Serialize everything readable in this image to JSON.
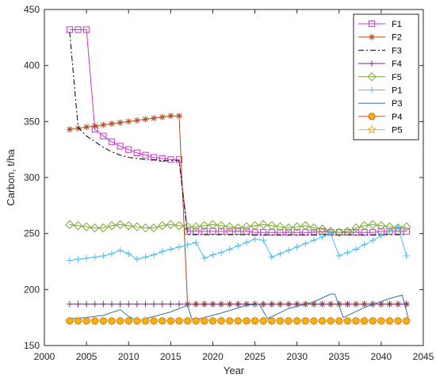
{
  "chart_data": {
    "type": "line",
    "xlabel": "Year",
    "ylabel": "Carbon, t/ha",
    "xlim": [
      2000,
      2045
    ],
    "ylim": [
      150,
      450
    ],
    "xticks": [
      2000,
      2005,
      2010,
      2015,
      2020,
      2025,
      2030,
      2035,
      2040,
      2045
    ],
    "yticks": [
      150,
      200,
      250,
      300,
      350,
      400,
      450
    ],
    "grid": false,
    "legend_position": "top-right",
    "series": [
      {
        "name": "F1",
        "color": "#CC33CC",
        "marker": "square",
        "dash": "solid",
        "x": [
          2003,
          2004,
          2005,
          2006,
          2007,
          2008,
          2009,
          2010,
          2011,
          2012,
          2013,
          2014,
          2015,
          2016,
          2017,
          2018,
          2019,
          2020,
          2021,
          2022,
          2023,
          2024,
          2025,
          2026,
          2027,
          2028,
          2029,
          2030,
          2031,
          2032,
          2033,
          2034,
          2035,
          2036,
          2037,
          2038,
          2039,
          2040,
          2041,
          2042,
          2043
        ],
        "y": [
          432,
          432,
          432,
          343,
          337,
          332,
          328,
          325,
          322,
          320,
          318,
          317,
          316,
          316,
          252,
          252,
          252,
          252,
          252,
          252,
          252,
          252,
          251,
          251,
          251,
          251,
          251,
          251,
          251,
          251,
          252,
          251,
          251,
          251,
          251,
          251,
          251,
          252,
          252,
          252,
          252
        ]
      },
      {
        "name": "F2",
        "color": "#B04A1E",
        "marker": "asterisk",
        "dash": "solid",
        "x": [
          2003,
          2004,
          2005,
          2006,
          2007,
          2008,
          2009,
          2010,
          2011,
          2012,
          2013,
          2014,
          2015,
          2016,
          2017,
          2018,
          2019,
          2020,
          2021,
          2022,
          2023,
          2024,
          2025,
          2026,
          2027,
          2028,
          2029,
          2030,
          2031,
          2032,
          2033,
          2034,
          2035,
          2036,
          2037,
          2038,
          2039,
          2040,
          2041,
          2042,
          2043
        ],
        "y": [
          343,
          344,
          345,
          346,
          347,
          348,
          349,
          350,
          351,
          352,
          353,
          354,
          355,
          355,
          187,
          187,
          187,
          187,
          187,
          187,
          187,
          187,
          187,
          187,
          187,
          187,
          187,
          187,
          187,
          187,
          187,
          187,
          187,
          187,
          187,
          187,
          187,
          187,
          187,
          187,
          187
        ]
      },
      {
        "name": "F3",
        "color": "#000000",
        "marker": "none",
        "dash": "dashdot",
        "x": [
          2003,
          2004,
          2005,
          2006,
          2007,
          2008,
          2009,
          2010,
          2011,
          2012,
          2013,
          2014,
          2015,
          2016,
          2017,
          2018,
          2019,
          2020,
          2021,
          2022,
          2023,
          2024,
          2025,
          2026,
          2027,
          2028,
          2029,
          2030,
          2031,
          2032,
          2033,
          2034,
          2035,
          2036,
          2037,
          2038,
          2039,
          2040,
          2041,
          2042,
          2043
        ],
        "y": [
          430,
          345,
          337,
          332,
          327,
          323,
          320,
          318,
          317,
          316,
          316,
          315,
          315,
          315,
          249,
          249,
          249,
          249,
          249,
          249,
          249,
          249,
          249,
          249,
          249,
          249,
          249,
          249,
          249,
          249,
          249,
          249,
          249,
          249,
          249,
          249,
          249,
          249,
          249,
          249,
          249
        ]
      },
      {
        "name": "F4",
        "color": "#7E2F8E",
        "marker": "plus",
        "dash": "solid",
        "x": [
          2003,
          2004,
          2005,
          2006,
          2007,
          2008,
          2009,
          2010,
          2011,
          2012,
          2013,
          2014,
          2015,
          2016,
          2017,
          2018,
          2019,
          2020,
          2021,
          2022,
          2023,
          2024,
          2025,
          2026,
          2027,
          2028,
          2029,
          2030,
          2031,
          2032,
          2033,
          2034,
          2035,
          2036,
          2037,
          2038,
          2039,
          2040,
          2041,
          2042,
          2043
        ],
        "y": [
          187,
          187,
          187,
          187,
          187,
          187,
          187,
          187,
          187,
          187,
          187,
          187,
          187,
          187,
          187,
          187,
          187,
          187,
          187,
          187,
          187,
          187,
          187,
          187,
          187,
          187,
          187,
          187,
          187,
          187,
          187,
          187,
          187,
          187,
          187,
          187,
          187,
          187,
          187,
          187,
          187
        ]
      },
      {
        "name": "F5",
        "color": "#77AC30",
        "marker": "diamond",
        "dash": "solid",
        "x": [
          2003,
          2004,
          2005,
          2006,
          2007,
          2008,
          2009,
          2010,
          2011,
          2012,
          2013,
          2014,
          2015,
          2016,
          2017,
          2018,
          2019,
          2020,
          2021,
          2022,
          2023,
          2024,
          2025,
          2026,
          2027,
          2028,
          2029,
          2030,
          2031,
          2032,
          2033,
          2034,
          2035,
          2036,
          2037,
          2038,
          2039,
          2040,
          2041,
          2042,
          2043
        ],
        "y": [
          258,
          257,
          256,
          255,
          255,
          257,
          258,
          257,
          256,
          255,
          255,
          257,
          258,
          257,
          256,
          256,
          257,
          258,
          257,
          256,
          255,
          256,
          257,
          258,
          257,
          256,
          255,
          256,
          257,
          255,
          254,
          252,
          251,
          252,
          255,
          257,
          258,
          257,
          256,
          255,
          256
        ]
      },
      {
        "name": "P1",
        "color": "#4DBEEE",
        "marker": "plus",
        "dash": "solid",
        "x": [
          2003,
          2004,
          2005,
          2006,
          2007,
          2008,
          2009,
          2010,
          2011,
          2012,
          2013,
          2014,
          2015,
          2016,
          2017,
          2018,
          2019,
          2020,
          2021,
          2022,
          2023,
          2024,
          2025,
          2026,
          2027,
          2028,
          2029,
          2030,
          2031,
          2032,
          2033,
          2034,
          2035,
          2036,
          2037,
          2038,
          2039,
          2040,
          2041,
          2042,
          2043
        ],
        "y": [
          226,
          227,
          228,
          229,
          230,
          232,
          235,
          232,
          227,
          229,
          231,
          234,
          236,
          238,
          240,
          242,
          228,
          231,
          233,
          236,
          239,
          242,
          245,
          244,
          229,
          232,
          235,
          238,
          241,
          244,
          247,
          250,
          230,
          233,
          236,
          240,
          244,
          248,
          252,
          256,
          230
        ]
      },
      {
        "name": "P3",
        "color": "#3A6FB0",
        "marker": "none",
        "dash": "solid",
        "x": [
          2003,
          2005,
          2007,
          2009,
          2010,
          2011,
          2013,
          2015,
          2017,
          2017.5,
          2018.5,
          2021,
          2024,
          2025.5,
          2026.5,
          2029,
          2032,
          2034,
          2034.5,
          2035.5,
          2038,
          2041,
          2042.5,
          2043.2
        ],
        "y": [
          174,
          175,
          177,
          182,
          176,
          172,
          176,
          180,
          186,
          174,
          174,
          179,
          186,
          187,
          174,
          183,
          189,
          196,
          196,
          175,
          184,
          192,
          195,
          175
        ]
      },
      {
        "name": "P4",
        "color": "#D95319",
        "marker": "circle",
        "dash": "solid",
        "x": [
          2003,
          2004,
          2005,
          2006,
          2007,
          2008,
          2009,
          2010,
          2011,
          2012,
          2013,
          2014,
          2015,
          2016,
          2017,
          2018,
          2019,
          2020,
          2021,
          2022,
          2023,
          2024,
          2025,
          2026,
          2027,
          2028,
          2029,
          2030,
          2031,
          2032,
          2033,
          2034,
          2035,
          2036,
          2037,
          2038,
          2039,
          2040,
          2041,
          2042,
          2043
        ],
        "y": [
          172,
          172,
          172,
          172,
          172,
          172,
          172,
          172,
          172,
          172,
          172,
          172,
          172,
          172,
          172,
          172,
          172,
          172,
          172,
          172,
          172,
          172,
          172,
          172,
          172,
          172,
          172,
          172,
          172,
          172,
          172,
          172,
          172,
          172,
          172,
          172,
          172,
          172,
          172,
          172,
          172
        ]
      },
      {
        "name": "P5",
        "color": "#EDB120",
        "marker": "star",
        "dash": "solid",
        "x": [
          2003,
          2004,
          2005,
          2006,
          2007,
          2008,
          2009,
          2010,
          2011,
          2012,
          2013,
          2014,
          2015,
          2016,
          2017,
          2018,
          2019,
          2020,
          2021,
          2022,
          2023,
          2024,
          2025,
          2026,
          2027,
          2028,
          2029,
          2030,
          2031,
          2032,
          2033,
          2034,
          2035,
          2036,
          2037,
          2038,
          2039,
          2040,
          2041,
          2042,
          2043
        ],
        "y": [
          172,
          172,
          172,
          172,
          172,
          172,
          172,
          172,
          172,
          172,
          172,
          172,
          172,
          172,
          172,
          172,
          172,
          172,
          172,
          172,
          172,
          172,
          172,
          172,
          172,
          172,
          172,
          172,
          172,
          172,
          172,
          172,
          172,
          172,
          172,
          172,
          172,
          172,
          172,
          172,
          172
        ]
      }
    ]
  }
}
